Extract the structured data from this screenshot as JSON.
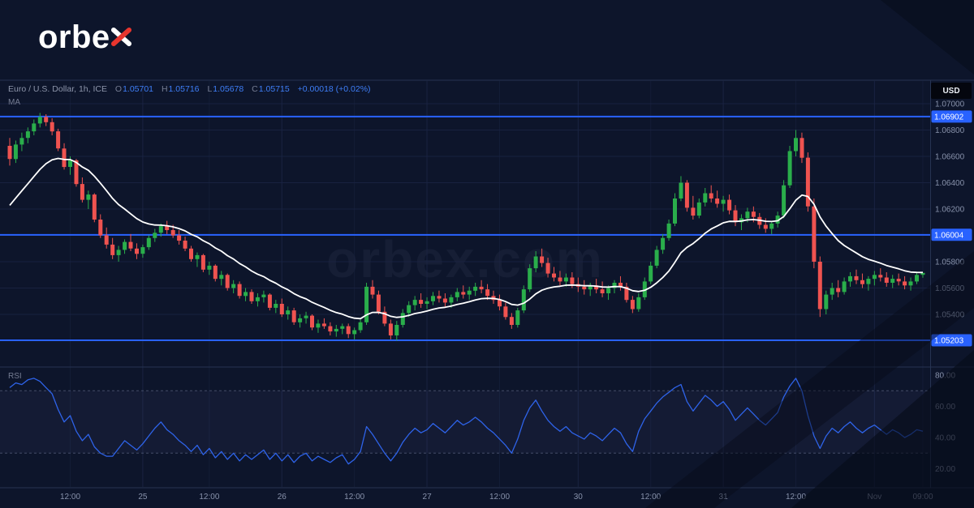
{
  "logo": {
    "text": "orbex",
    "main": "orbe",
    "accent": "x"
  },
  "legend": {
    "symbol": "Euro / U.S. Dollar, 1h, ICE",
    "o_label": "O",
    "open": "1.05701",
    "h_label": "H",
    "high": "1.05716",
    "l_label": "L",
    "low": "1.05678",
    "c_label": "C",
    "close": "1.05715",
    "change": "+0.00018 (+0.02%)",
    "ma_label": "MA",
    "rsi_label": "RSI"
  },
  "badges": {
    "currency": "USD"
  },
  "chart_data": {
    "type": "candlestick",
    "title": "Euro / U.S. Dollar, 1h, ICE",
    "interval": "1h",
    "watermark": "orbex.com",
    "ylim": [
      1.0501,
      1.0717
    ],
    "price_ticks": [
      1.07,
      1.068,
      1.066,
      1.064,
      1.062,
      1.06,
      1.058,
      1.056,
      1.054
    ],
    "levels": [
      1.06902,
      1.06004,
      1.05203
    ],
    "time_ticks": [
      {
        "index": 10,
        "label": "12:00"
      },
      {
        "index": 22,
        "label": "25"
      },
      {
        "index": 33,
        "label": "12:00"
      },
      {
        "index": 45,
        "label": "26"
      },
      {
        "index": 57,
        "label": "12:00"
      },
      {
        "index": 69,
        "label": "27"
      },
      {
        "index": 81,
        "label": "12:00"
      },
      {
        "index": 94,
        "label": "30"
      },
      {
        "index": 106,
        "label": "12:00"
      },
      {
        "index": 118,
        "label": "31"
      },
      {
        "index": 130,
        "label": "12:00"
      },
      {
        "index": 143,
        "label": "Nov"
      },
      {
        "index": 151,
        "label": "09:00"
      }
    ],
    "ma_seed": 1.0618,
    "ma_alpha": 0.12,
    "colors": {
      "up": "#2aae4b",
      "down": "#ef5350",
      "ma": "#ffffff",
      "rsi": "#2e63e9",
      "level": "#2962ff",
      "grid": "#1b2544",
      "separator": "#263352",
      "axis_text": "#8892ab",
      "rsi_band_line": "#5a647f",
      "rsi_band_fill": "rgba(116,110,180,0.07)",
      "background": "#0d152b",
      "accent_red": "#e8352e"
    },
    "candles": [
      [
        1.0668,
        1.0674,
        1.0653,
        1.0658
      ],
      [
        1.0658,
        1.0672,
        1.0655,
        1.0669
      ],
      [
        1.0669,
        1.0678,
        1.0664,
        1.0674
      ],
      [
        1.0674,
        1.0682,
        1.067,
        1.0679
      ],
      [
        1.0679,
        1.0688,
        1.0676,
        1.0685
      ],
      [
        1.0685,
        1.0693,
        1.0682,
        1.069
      ],
      [
        1.069,
        1.0692,
        1.0683,
        1.0686
      ],
      [
        1.0686,
        1.0689,
        1.0676,
        1.0679
      ],
      [
        1.0679,
        1.0681,
        1.0664,
        1.0666
      ],
      [
        1.0666,
        1.067,
        1.065,
        1.0652
      ],
      [
        1.0652,
        1.066,
        1.0646,
        1.0657
      ],
      [
        1.0657,
        1.0658,
        1.0637,
        1.0639
      ],
      [
        1.0639,
        1.0644,
        1.0625,
        1.0627
      ],
      [
        1.0627,
        1.0634,
        1.062,
        1.0631
      ],
      [
        1.0631,
        1.0632,
        1.061,
        1.0612
      ],
      [
        1.0612,
        1.0616,
        1.0598,
        1.06
      ],
      [
        1.06,
        1.0606,
        1.059,
        1.0593
      ],
      [
        1.0593,
        1.0598,
        1.0582,
        1.0585
      ],
      [
        1.0585,
        1.0592,
        1.058,
        1.0589
      ],
      [
        1.0589,
        1.0597,
        1.0586,
        1.0595
      ],
      [
        1.0595,
        1.0601,
        1.0588,
        1.059
      ],
      [
        1.059,
        1.0594,
        1.0582,
        1.0586
      ],
      [
        1.0586,
        1.0593,
        1.0583,
        1.0591
      ],
      [
        1.0591,
        1.06,
        1.0589,
        1.0598
      ],
      [
        1.0598,
        1.0605,
        1.0595,
        1.0602
      ],
      [
        1.0602,
        1.0609,
        1.0599,
        1.0607
      ],
      [
        1.0607,
        1.0611,
        1.0601,
        1.0604
      ],
      [
        1.0604,
        1.0608,
        1.0598,
        1.06
      ],
      [
        1.06,
        1.0604,
        1.0593,
        1.0596
      ],
      [
        1.0596,
        1.0599,
        1.0588,
        1.059
      ],
      [
        1.059,
        1.0592,
        1.058,
        1.0582
      ],
      [
        1.0582,
        1.0587,
        1.0576,
        1.0585
      ],
      [
        1.0585,
        1.0586,
        1.0572,
        1.0574
      ],
      [
        1.0574,
        1.058,
        1.057,
        1.0577
      ],
      [
        1.0577,
        1.0578,
        1.0565,
        1.0567
      ],
      [
        1.0567,
        1.0573,
        1.0562,
        1.057
      ],
      [
        1.057,
        1.0571,
        1.0558,
        1.056
      ],
      [
        1.056,
        1.0566,
        1.0556,
        1.0563
      ],
      [
        1.0563,
        1.0565,
        1.0552,
        1.0554
      ],
      [
        1.0554,
        1.056,
        1.055,
        1.0557
      ],
      [
        1.0557,
        1.0559,
        1.0548,
        1.055
      ],
      [
        1.055,
        1.0556,
        1.0546,
        1.0553
      ],
      [
        1.0553,
        1.0558,
        1.0549,
        1.0555
      ],
      [
        1.0555,
        1.0556,
        1.0543,
        1.0545
      ],
      [
        1.0545,
        1.0551,
        1.0541,
        1.0548
      ],
      [
        1.0548,
        1.0552,
        1.0538,
        1.054
      ],
      [
        1.054,
        1.0546,
        1.0536,
        1.0543
      ],
      [
        1.0543,
        1.0545,
        1.0532,
        1.0534
      ],
      [
        1.0534,
        1.054,
        1.053,
        1.0537
      ],
      [
        1.0537,
        1.0542,
        1.0533,
        1.0539
      ],
      [
        1.0539,
        1.054,
        1.0528,
        1.053
      ],
      [
        1.053,
        1.0536,
        1.0526,
        1.0533
      ],
      [
        1.0533,
        1.0537,
        1.0529,
        1.0531
      ],
      [
        1.0531,
        1.0534,
        1.0524,
        1.0527
      ],
      [
        1.0527,
        1.0532,
        1.0523,
        1.0529
      ],
      [
        1.0529,
        1.0533,
        1.0525,
        1.0531
      ],
      [
        1.0531,
        1.0533,
        1.0522,
        1.0525
      ],
      [
        1.0525,
        1.053,
        1.0521,
        1.0528
      ],
      [
        1.0528,
        1.0536,
        1.0526,
        1.0534
      ],
      [
        1.0534,
        1.0564,
        1.0532,
        1.0561
      ],
      [
        1.0561,
        1.0566,
        1.0552,
        1.0555
      ],
      [
        1.0555,
        1.0558,
        1.054,
        1.0542
      ],
      [
        1.0542,
        1.0546,
        1.0531,
        1.0533
      ],
      [
        1.0533,
        1.0536,
        1.0521,
        1.0524
      ],
      [
        1.0524,
        1.0535,
        1.052,
        1.0532
      ],
      [
        1.0532,
        1.0544,
        1.053,
        1.0541
      ],
      [
        1.0541,
        1.055,
        1.0538,
        1.0547
      ],
      [
        1.0547,
        1.0554,
        1.0543,
        1.0551
      ],
      [
        1.0551,
        1.0556,
        1.0545,
        1.0548
      ],
      [
        1.0548,
        1.0553,
        1.0544,
        1.055
      ],
      [
        1.055,
        1.0557,
        1.0547,
        1.0554
      ],
      [
        1.0554,
        1.0558,
        1.0549,
        1.0552
      ],
      [
        1.0552,
        1.0556,
        1.0546,
        1.0549
      ],
      [
        1.0549,
        1.0555,
        1.0545,
        1.0553
      ],
      [
        1.0553,
        1.056,
        1.055,
        1.0557
      ],
      [
        1.0557,
        1.0562,
        1.0552,
        1.0555
      ],
      [
        1.0555,
        1.0561,
        1.0551,
        1.0558
      ],
      [
        1.0558,
        1.0564,
        1.0554,
        1.0561
      ],
      [
        1.0561,
        1.0566,
        1.0556,
        1.0559
      ],
      [
        1.0559,
        1.0563,
        1.0551,
        1.0554
      ],
      [
        1.0554,
        1.0558,
        1.0548,
        1.0551
      ],
      [
        1.0551,
        1.0555,
        1.0543,
        1.0546
      ],
      [
        1.0546,
        1.0549,
        1.0536,
        1.0538
      ],
      [
        1.0538,
        1.0541,
        1.0529,
        1.0532
      ],
      [
        1.0532,
        1.0545,
        1.053,
        1.0543
      ],
      [
        1.0543,
        1.0562,
        1.0541,
        1.0559
      ],
      [
        1.0559,
        1.0578,
        1.0557,
        1.0575
      ],
      [
        1.0575,
        1.0588,
        1.0572,
        1.0584
      ],
      [
        1.0584,
        1.059,
        1.0576,
        1.0579
      ],
      [
        1.0579,
        1.0583,
        1.0568,
        1.0571
      ],
      [
        1.0571,
        1.0576,
        1.0565,
        1.0568
      ],
      [
        1.0568,
        1.0573,
        1.0562,
        1.0565
      ],
      [
        1.0565,
        1.0571,
        1.0561,
        1.0568
      ],
      [
        1.0568,
        1.0572,
        1.056,
        1.0563
      ],
      [
        1.0563,
        1.0568,
        1.0557,
        1.0561
      ],
      [
        1.0561,
        1.0566,
        1.0555,
        1.0559
      ],
      [
        1.0559,
        1.0564,
        1.0554,
        1.0562
      ],
      [
        1.0562,
        1.0567,
        1.0556,
        1.0559
      ],
      [
        1.0559,
        1.0565,
        1.0553,
        1.0556
      ],
      [
        1.0556,
        1.0562,
        1.0551,
        1.056
      ],
      [
        1.056,
        1.0566,
        1.0556,
        1.0564
      ],
      [
        1.0564,
        1.0569,
        1.0558,
        1.0561
      ],
      [
        1.0561,
        1.0564,
        1.0549,
        1.0551
      ],
      [
        1.0551,
        1.0554,
        1.0541,
        1.0544
      ],
      [
        1.0544,
        1.0556,
        1.0542,
        1.0553
      ],
      [
        1.0553,
        1.0568,
        1.0551,
        1.0565
      ],
      [
        1.0565,
        1.058,
        1.0563,
        1.0577
      ],
      [
        1.0577,
        1.0592,
        1.0575,
        1.0589
      ],
      [
        1.0589,
        1.0601,
        1.0586,
        1.0598
      ],
      [
        1.0598,
        1.0612,
        1.0596,
        1.0609
      ],
      [
        1.0609,
        1.0632,
        1.0607,
        1.0628
      ],
      [
        1.0628,
        1.0645,
        1.0626,
        1.064
      ],
      [
        1.064,
        1.0642,
        1.0618,
        1.0621
      ],
      [
        1.0621,
        1.063,
        1.0612,
        1.0615
      ],
      [
        1.0615,
        1.0628,
        1.0613,
        1.0625
      ],
      [
        1.0625,
        1.0636,
        1.0622,
        1.0632
      ],
      [
        1.0632,
        1.0638,
        1.0625,
        1.0628
      ],
      [
        1.0628,
        1.0634,
        1.0621,
        1.0624
      ],
      [
        1.0624,
        1.063,
        1.0618,
        1.0627
      ],
      [
        1.0627,
        1.0631,
        1.0616,
        1.0619
      ],
      [
        1.0619,
        1.0623,
        1.0607,
        1.061
      ],
      [
        1.061,
        1.0616,
        1.0604,
        1.0613
      ],
      [
        1.0613,
        1.0621,
        1.061,
        1.0618
      ],
      [
        1.0618,
        1.0622,
        1.061,
        1.0614
      ],
      [
        1.0614,
        1.0617,
        1.0605,
        1.0608
      ],
      [
        1.0608,
        1.0613,
        1.0602,
        1.0605
      ],
      [
        1.0605,
        1.0611,
        1.0601,
        1.0609
      ],
      [
        1.0609,
        1.0618,
        1.0606,
        1.0615
      ],
      [
        1.0615,
        1.0642,
        1.0613,
        1.0638
      ],
      [
        1.0638,
        1.0668,
        1.0636,
        1.0664
      ],
      [
        1.0664,
        1.068,
        1.066,
        1.0674
      ],
      [
        1.0674,
        1.0678,
        1.0655,
        1.0659
      ],
      [
        1.0659,
        1.0663,
        1.0618,
        1.0622
      ],
      [
        1.0622,
        1.0628,
        1.0575,
        1.058
      ],
      [
        1.058,
        1.0584,
        1.0538,
        1.0544
      ],
      [
        1.0544,
        1.0558,
        1.054,
        1.0555
      ],
      [
        1.0555,
        1.0564,
        1.0551,
        1.056
      ],
      [
        1.056,
        1.0566,
        1.0553,
        1.0557
      ],
      [
        1.0557,
        1.0568,
        1.0555,
        1.0565
      ],
      [
        1.0565,
        1.0572,
        1.0561,
        1.0569
      ],
      [
        1.0569,
        1.0574,
        1.0563,
        1.0566
      ],
      [
        1.0566,
        1.0571,
        1.056,
        1.0563
      ],
      [
        1.0563,
        1.0569,
        1.0558,
        1.0567
      ],
      [
        1.0567,
        1.0573,
        1.0562,
        1.057
      ],
      [
        1.057,
        1.0575,
        1.0565,
        1.0568
      ],
      [
        1.0568,
        1.0572,
        1.0561,
        1.0564
      ],
      [
        1.0564,
        1.057,
        1.056,
        1.0567
      ],
      [
        1.0567,
        1.0571,
        1.0562,
        1.0565
      ],
      [
        1.0565,
        1.0569,
        1.0559,
        1.0562
      ],
      [
        1.0562,
        1.0568,
        1.0558,
        1.0565
      ],
      [
        1.0565,
        1.0572,
        1.0563,
        1.057
      ],
      [
        1.057,
        1.05716,
        1.05678,
        1.05715
      ]
    ],
    "rsi": {
      "ticks": [
        80,
        60,
        40,
        20
      ],
      "bands": [
        70,
        30
      ],
      "range": [
        0,
        100
      ],
      "values": [
        72,
        75,
        74,
        77,
        78,
        76,
        72,
        68,
        58,
        50,
        54,
        44,
        38,
        42,
        34,
        30,
        28,
        28,
        33,
        38,
        35,
        32,
        36,
        41,
        46,
        50,
        45,
        42,
        38,
        35,
        31,
        35,
        29,
        33,
        27,
        31,
        26,
        30,
        25,
        29,
        26,
        29,
        32,
        26,
        30,
        25,
        29,
        24,
        28,
        30,
        25,
        28,
        26,
        24,
        27,
        29,
        23,
        26,
        31,
        47,
        42,
        36,
        30,
        25,
        30,
        37,
        42,
        46,
        43,
        45,
        49,
        46,
        43,
        47,
        51,
        48,
        50,
        53,
        50,
        46,
        43,
        39,
        35,
        30,
        39,
        51,
        59,
        64,
        57,
        51,
        47,
        44,
        47,
        43,
        41,
        39,
        43,
        41,
        38,
        42,
        46,
        43,
        36,
        31,
        44,
        52,
        57,
        62,
        66,
        69,
        72,
        74,
        63,
        57,
        62,
        67,
        64,
        60,
        63,
        58,
        51,
        55,
        59,
        55,
        51,
        48,
        52,
        56,
        66,
        73,
        78,
        70,
        54,
        41,
        33,
        41,
        46,
        43,
        47,
        50,
        46,
        43,
        46,
        48,
        45,
        42,
        45,
        43,
        40,
        42,
        45,
        44
      ]
    }
  }
}
